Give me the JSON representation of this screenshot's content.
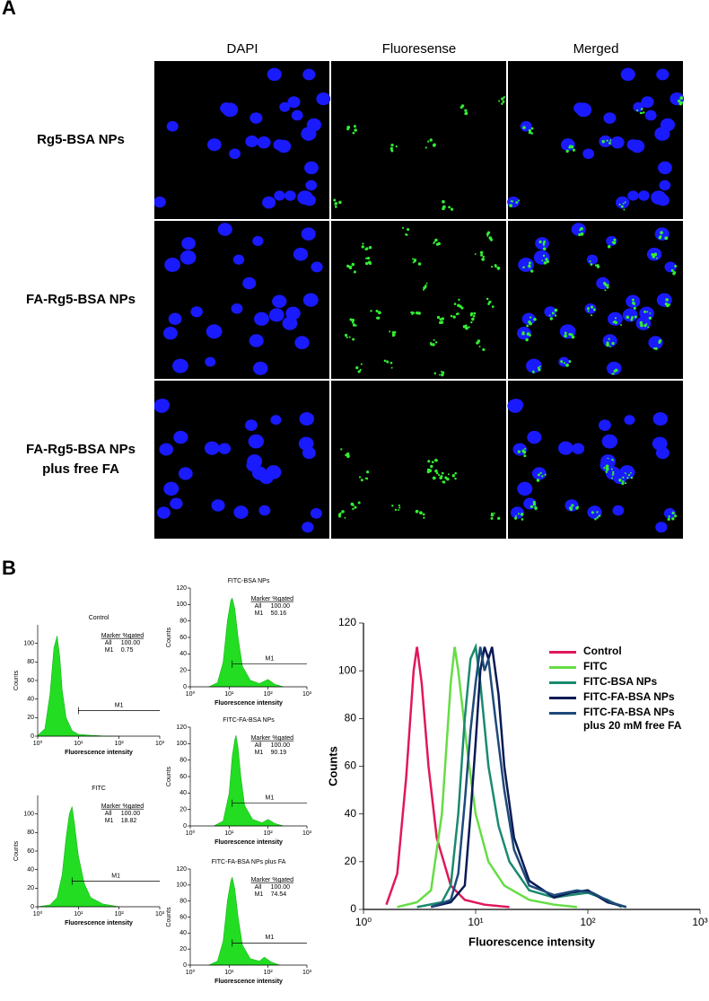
{
  "panel_a": {
    "label": "A",
    "columns": [
      "DAPI",
      "Fluoresense",
      "Merged"
    ],
    "rows": [
      "Rg5-BSA NPs",
      "FA-Rg5-BSA NPs",
      "FA-Rg5-BSA NPs plus free FA"
    ]
  },
  "panel_b": {
    "label": "B"
  },
  "chart_data": [
    {
      "type": "area",
      "title": "Control",
      "xlabel": "Fluorescence intensity",
      "ylabel": "Counts",
      "log_x": true,
      "color": "#22dd22",
      "x": [
        1,
        1.5,
        2,
        2.5,
        3,
        3.5,
        4,
        5,
        7,
        10,
        20,
        50,
        100
      ],
      "values": [
        1,
        8,
        45,
        95,
        108,
        85,
        50,
        20,
        6,
        2,
        1,
        0,
        0
      ],
      "xlim": [
        1,
        1000
      ],
      "ylim": [
        0,
        120
      ],
      "xticks": [
        {
          "value": 1,
          "label": "10⁰"
        },
        {
          "value": 10,
          "label": "10¹"
        },
        {
          "value": 100,
          "label": "10²"
        },
        {
          "value": 1000,
          "label": "10³"
        }
      ],
      "yticks": [
        0,
        20,
        40,
        60,
        80,
        100
      ],
      "marker": {
        "label": "M1",
        "range": [
          10,
          1000
        ]
      },
      "stats": {
        "header": "Marker %gated",
        "rows": [
          [
            "All",
            "100.00"
          ],
          [
            "M1",
            "0.75"
          ]
        ]
      }
    },
    {
      "type": "area",
      "title": "FITC",
      "xlabel": "Fluorescence intensity",
      "ylabel": "Counts",
      "log_x": true,
      "color": "#22dd22",
      "x": [
        1,
        2,
        3,
        4,
        5,
        6,
        7,
        8,
        10,
        14,
        20,
        40,
        100
      ],
      "values": [
        0,
        2,
        10,
        35,
        75,
        100,
        108,
        90,
        55,
        25,
        10,
        3,
        0
      ],
      "xlim": [
        1,
        1000
      ],
      "ylim": [
        0,
        120
      ],
      "xticks": [
        {
          "value": 1,
          "label": "10⁰"
        },
        {
          "value": 10,
          "label": "10¹"
        },
        {
          "value": 100,
          "label": "10²"
        },
        {
          "value": 1000,
          "label": "10³"
        }
      ],
      "yticks": [
        0,
        20,
        40,
        60,
        80,
        100
      ],
      "marker": {
        "label": "M1",
        "range": [
          7,
          1000
        ]
      },
      "stats": {
        "header": "Marker %gated",
        "rows": [
          [
            "All",
            "100.00"
          ],
          [
            "M1",
            "18.82"
          ]
        ]
      }
    },
    {
      "type": "area",
      "title": "FITC-BSA NPs",
      "xlabel": "Fluorescence intensity",
      "ylabel": "Counts",
      "log_x": true,
      "color": "#22dd22",
      "x": [
        3,
        5,
        7,
        9,
        11,
        12,
        14,
        17,
        22,
        35,
        60,
        100,
        150,
        250
      ],
      "values": [
        0,
        5,
        30,
        80,
        105,
        108,
        95,
        60,
        25,
        8,
        4,
        9,
        3,
        0
      ],
      "xlim": [
        1,
        1000
      ],
      "ylim": [
        0,
        120
      ],
      "xticks": [
        {
          "value": 1,
          "label": "10⁰"
        },
        {
          "value": 10,
          "label": "10¹"
        },
        {
          "value": 100,
          "label": "10²"
        },
        {
          "value": 1000,
          "label": "10³"
        }
      ],
      "yticks": [
        0,
        20,
        40,
        60,
        80,
        100,
        120
      ],
      "marker": {
        "label": "M1",
        "range": [
          12,
          1000
        ]
      },
      "stats": {
        "header": "Marker %gated",
        "rows": [
          [
            "All",
            "100.00"
          ],
          [
            "M1",
            "50.16"
          ]
        ]
      }
    },
    {
      "type": "area",
      "title": "FITC-FA-BSA NPs",
      "xlabel": "Fluorescence intensity",
      "ylabel": "Counts",
      "log_x": true,
      "color": "#22dd22",
      "x": [
        4,
        7,
        10,
        12,
        14,
        15,
        17,
        20,
        25,
        40,
        70,
        100,
        150,
        250
      ],
      "values": [
        0,
        6,
        40,
        85,
        105,
        110,
        95,
        60,
        25,
        8,
        4,
        8,
        3,
        0
      ],
      "xlim": [
        1,
        1000
      ],
      "ylim": [
        0,
        120
      ],
      "xticks": [
        {
          "value": 1,
          "label": "10⁰"
        },
        {
          "value": 10,
          "label": "10¹"
        },
        {
          "value": 100,
          "label": "10²"
        },
        {
          "value": 1000,
          "label": "10³"
        }
      ],
      "yticks": [
        0,
        20,
        40,
        60,
        80,
        100,
        120
      ],
      "marker": {
        "label": "M1",
        "range": [
          12,
          1000
        ]
      },
      "stats": {
        "header": "Marker %gated",
        "rows": [
          [
            "All",
            "100.00"
          ],
          [
            "M1",
            "90.19"
          ]
        ]
      }
    },
    {
      "type": "area",
      "title": "FITC-FA-BSA NPs plus FA",
      "xlabel": "Fluorescence intensity",
      "ylabel": "Counts",
      "log_x": true,
      "color": "#22dd22",
      "x": [
        3,
        5,
        7,
        9,
        11,
        12,
        14,
        17,
        22,
        35,
        60,
        80,
        120,
        200
      ],
      "values": [
        0,
        5,
        30,
        80,
        105,
        110,
        95,
        60,
        25,
        8,
        5,
        10,
        4,
        0
      ],
      "xlim": [
        1,
        1000
      ],
      "ylim": [
        0,
        120
      ],
      "xticks": [
        {
          "value": 1,
          "label": "10⁰"
        },
        {
          "value": 10,
          "label": "10¹"
        },
        {
          "value": 100,
          "label": "10²"
        },
        {
          "value": 1000,
          "label": "10³"
        }
      ],
      "yticks": [
        0,
        20,
        40,
        60,
        80,
        100,
        120
      ],
      "marker": {
        "label": "M1",
        "range": [
          12,
          1000
        ]
      },
      "stats": {
        "header": "Marker %gated",
        "rows": [
          [
            "All",
            "100.00"
          ],
          [
            "M1",
            "74.54"
          ]
        ]
      }
    },
    {
      "type": "line",
      "xlabel": "Fluorescence intensity",
      "ylabel": "Counts",
      "log_x": true,
      "xlim": [
        1,
        1000
      ],
      "ylim": [
        0,
        120
      ],
      "xticks": [
        {
          "value": 1,
          "label": "10⁰"
        },
        {
          "value": 10,
          "label": "10¹"
        },
        {
          "value": 100,
          "label": "10²"
        },
        {
          "value": 1000,
          "label": "10³"
        }
      ],
      "yticks": [
        0,
        20,
        40,
        60,
        80,
        100,
        120
      ],
      "series": [
        {
          "name": "Control",
          "color": "#e0185a",
          "x": [
            1.6,
            2,
            2.4,
            2.8,
            3,
            3.3,
            3.8,
            4.5,
            6,
            8,
            12,
            20
          ],
          "values": [
            2,
            15,
            55,
            100,
            110,
            95,
            60,
            30,
            10,
            4,
            2,
            1
          ]
        },
        {
          "name": "FITC",
          "color": "#66dd44",
          "x": [
            2,
            3,
            4,
            5,
            6,
            6.5,
            7,
            8.5,
            10,
            13,
            18,
            30,
            50,
            80
          ],
          "values": [
            1,
            3,
            8,
            40,
            95,
            110,
            100,
            65,
            40,
            20,
            10,
            4,
            2,
            1
          ]
        },
        {
          "name": "FITC-BSA NPs",
          "color": "#1a8a6e",
          "x": [
            3,
            5,
            6,
            7,
            8,
            9,
            10,
            11,
            13,
            16,
            20,
            30,
            50,
            70,
            100,
            150,
            200
          ],
          "values": [
            1,
            3,
            10,
            40,
            80,
            105,
            110,
            95,
            60,
            35,
            20,
            8,
            5,
            6,
            7,
            4,
            1
          ]
        },
        {
          "name": "FITC-FA-BSA NPs",
          "color": "#0a1a55",
          "x": [
            4,
            6,
            8,
            9,
            10,
            11,
            12,
            13,
            14,
            16,
            18,
            22,
            30,
            50,
            70,
            100,
            150,
            220
          ],
          "values": [
            1,
            3,
            10,
            40,
            70,
            100,
            110,
            105,
            110,
            90,
            60,
            30,
            12,
            5,
            7,
            8,
            3,
            1
          ]
        },
        {
          "name": "FITC-FA-BSA NPs plus 20 mM free FA",
          "color": "#1e4a7a",
          "x": [
            4,
            6,
            7,
            8,
            9,
            10,
            11,
            12,
            13,
            15,
            18,
            22,
            30,
            50,
            80,
            110,
            160,
            220
          ],
          "values": [
            1,
            4,
            15,
            45,
            75,
            95,
            110,
            100,
            105,
            80,
            50,
            25,
            10,
            6,
            8,
            7,
            3,
            1
          ]
        }
      ]
    }
  ]
}
